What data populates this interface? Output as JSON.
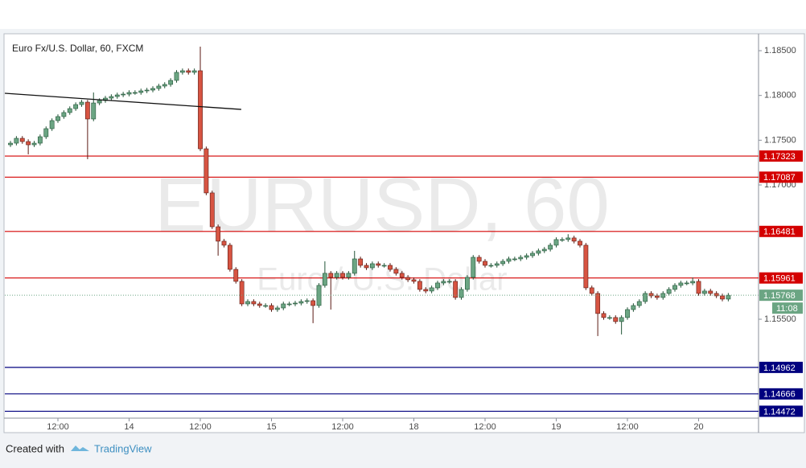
{
  "chart_data": {
    "type": "candlestick",
    "title": "Euro Fx/U.S. Dollar, 60, FXCM",
    "watermark": "EURUSD, 60",
    "watermark_subtitle": "Euro / U.S. Dollar",
    "up_color": "#6ba583",
    "down_color": "#d75442",
    "open": [
      1.17449,
      1.17467,
      1.17521,
      1.17485,
      1.17449,
      1.17467,
      1.17539,
      1.17629,
      1.17719,
      1.17764,
      1.17809,
      1.17853,
      1.17898,
      1.17925,
      1.17737,
      1.17916,
      1.17943,
      1.1797,
      1.17988,
      1.18006,
      1.18015,
      1.18033,
      1.18033,
      1.18051,
      1.1806,
      1.18078,
      1.18105,
      1.18123,
      1.18168,
      1.18258,
      1.18276,
      1.18258,
      1.18276,
      1.17404,
      1.16911,
      1.16533,
      1.16372,
      1.16327,
      1.16057,
      1.15923,
      1.15671,
      1.15698,
      1.15671,
      1.15653,
      1.15653,
      1.15608,
      1.15626,
      1.15671,
      1.15671,
      1.1568,
      1.15698,
      1.15707,
      1.15653,
      1.15878,
      1.16013,
      1.15968,
      1.16013,
      1.15968,
      1.16013,
      1.16174,
      1.16102,
      1.16075,
      1.1612,
      1.16102,
      1.16102,
      1.16057,
      1.16013,
      1.15968,
      1.15941,
      1.15923,
      1.15833,
      1.15815,
      1.15851,
      1.15905,
      1.15923,
      1.15923,
      1.15743,
      1.15833,
      1.15968,
      1.16192,
      1.16147,
      1.16102,
      1.16102,
      1.1612,
      1.16147,
      1.16174,
      1.16174,
      1.16192,
      1.1621,
      1.16237,
      1.16264,
      1.16282,
      1.16327,
      1.1639,
      1.1639,
      1.16408,
      1.16372,
      1.16327,
      1.15851,
      1.15788,
      1.15564,
      1.15519,
      1.15519,
      1.15474,
      1.15519,
      1.15608,
      1.15653,
      1.15698,
      1.15788,
      1.15761,
      1.15743,
      1.15788,
      1.15833,
      1.15878,
      1.15905,
      1.15905,
      1.15923,
      1.15788,
      1.15815,
      1.15788,
      1.15761,
      1.15725
    ],
    "high": [
      1.17492,
      1.17546,
      1.17546,
      1.1751,
      1.17492,
      1.17564,
      1.17654,
      1.17744,
      1.17789,
      1.17834,
      1.17878,
      1.17923,
      1.1795,
      1.1795,
      1.18033,
      1.17968,
      1.17995,
      1.18013,
      1.18031,
      1.1804,
      1.18058,
      1.18058,
      1.18076,
      1.18085,
      1.18103,
      1.1813,
      1.18148,
      1.18193,
      1.18283,
      1.18301,
      1.18301,
      1.18301,
      1.18545,
      1.17429,
      1.16936,
      1.16558,
      1.16397,
      1.16352,
      1.16082,
      1.15948,
      1.15723,
      1.15723,
      1.15696,
      1.15678,
      1.15678,
      1.15651,
      1.15696,
      1.15696,
      1.15705,
      1.15723,
      1.15732,
      1.15732,
      1.15903,
      1.16147,
      1.16038,
      1.16038,
      1.16038,
      1.16038,
      1.16264,
      1.16199,
      1.16127,
      1.16145,
      1.16145,
      1.16127,
      1.16127,
      1.16082,
      1.16038,
      1.15993,
      1.15966,
      1.15948,
      1.15858,
      1.15876,
      1.1593,
      1.15948,
      1.15948,
      1.15948,
      1.15858,
      1.15993,
      1.16217,
      1.16217,
      1.16172,
      1.16127,
      1.16145,
      1.16172,
      1.16199,
      1.16199,
      1.16217,
      1.16235,
      1.16262,
      1.16289,
      1.16307,
      1.16352,
      1.16415,
      1.16415,
      1.1645,
      1.16433,
      1.16397,
      1.16352,
      1.15876,
      1.15813,
      1.15589,
      1.15544,
      1.15544,
      1.15544,
      1.15633,
      1.15678,
      1.15723,
      1.15813,
      1.15813,
      1.15786,
      1.15813,
      1.15858,
      1.15903,
      1.1593,
      1.1593,
      1.15966,
      1.15948,
      1.1584,
      1.1584,
      1.15813,
      1.15786,
      1.15793
    ],
    "low": [
      1.17424,
      1.17442,
      1.1746,
      1.17342,
      1.17424,
      1.17442,
      1.17514,
      1.17604,
      1.17694,
      1.17739,
      1.17784,
      1.17828,
      1.17873,
      1.17288,
      1.17712,
      1.17891,
      1.17918,
      1.17945,
      1.17963,
      1.17981,
      1.1799,
      1.18008,
      1.18008,
      1.18026,
      1.18035,
      1.18053,
      1.1808,
      1.18098,
      1.18143,
      1.18233,
      1.18233,
      1.18233,
      1.17379,
      1.16886,
      1.16508,
      1.1621,
      1.16302,
      1.16032,
      1.15898,
      1.15646,
      1.15646,
      1.15646,
      1.15628,
      1.15628,
      1.15583,
      1.15583,
      1.15601,
      1.15646,
      1.15646,
      1.15655,
      1.15673,
      1.15456,
      1.15628,
      1.15853,
      1.15608,
      1.15943,
      1.15943,
      1.15943,
      1.15988,
      1.16077,
      1.1605,
      1.1605,
      1.16077,
      1.16077,
      1.16032,
      1.15988,
      1.15943,
      1.15916,
      1.15898,
      1.15808,
      1.1579,
      1.1579,
      1.15826,
      1.1588,
      1.15898,
      1.15718,
      1.15718,
      1.15808,
      1.15943,
      1.16122,
      1.16077,
      1.16077,
      1.16077,
      1.16095,
      1.16122,
      1.16149,
      1.16149,
      1.16167,
      1.16185,
      1.16212,
      1.16239,
      1.16257,
      1.16302,
      1.16365,
      1.16365,
      1.16347,
      1.16302,
      1.15826,
      1.15763,
      1.15312,
      1.15494,
      1.15494,
      1.15449,
      1.1533,
      1.15494,
      1.15583,
      1.15628,
      1.15673,
      1.15736,
      1.15718,
      1.15718,
      1.15763,
      1.15808,
      1.15853,
      1.1588,
      1.1588,
      1.15763,
      1.15763,
      1.15763,
      1.15736,
      1.157,
      1.157
    ],
    "close": [
      1.17467,
      1.17521,
      1.17485,
      1.17449,
      1.17467,
      1.17539,
      1.17629,
      1.17719,
      1.17764,
      1.17809,
      1.17853,
      1.17898,
      1.17925,
      1.17737,
      1.17916,
      1.17943,
      1.1797,
      1.17988,
      1.18006,
      1.18015,
      1.18033,
      1.18033,
      1.18051,
      1.1806,
      1.18078,
      1.18105,
      1.18123,
      1.18168,
      1.18258,
      1.18276,
      1.18258,
      1.18276,
      1.17404,
      1.16911,
      1.16533,
      1.16372,
      1.16327,
      1.16057,
      1.15923,
      1.15671,
      1.15698,
      1.15671,
      1.15653,
      1.15653,
      1.15608,
      1.15626,
      1.15671,
      1.15671,
      1.1568,
      1.15698,
      1.15707,
      1.15653,
      1.15878,
      1.16013,
      1.15968,
      1.16013,
      1.15968,
      1.16013,
      1.16174,
      1.16102,
      1.16075,
      1.1612,
      1.16102,
      1.16102,
      1.16057,
      1.16013,
      1.15968,
      1.15941,
      1.15923,
      1.15833,
      1.15815,
      1.15851,
      1.15905,
      1.15923,
      1.15923,
      1.15743,
      1.15833,
      1.15968,
      1.16192,
      1.16147,
      1.16102,
      1.16102,
      1.1612,
      1.16147,
      1.16174,
      1.16174,
      1.16192,
      1.1621,
      1.16237,
      1.16264,
      1.16282,
      1.16327,
      1.1639,
      1.1639,
      1.16408,
      1.16372,
      1.16327,
      1.15851,
      1.15788,
      1.15564,
      1.15519,
      1.15519,
      1.15474,
      1.15519,
      1.15608,
      1.15653,
      1.15698,
      1.15788,
      1.15761,
      1.15743,
      1.15788,
      1.15833,
      1.15878,
      1.15905,
      1.15905,
      1.15923,
      1.15788,
      1.15815,
      1.15788,
      1.15761,
      1.15725,
      1.15768
    ],
    "xlim": [
      -0.95,
      126.1
    ],
    "ylim": [
      1.14395,
      1.18671
    ],
    "xticks": [
      {
        "value": 8,
        "label": "12:00"
      },
      {
        "value": 20,
        "label": "14"
      },
      {
        "value": 32,
        "label": "12:00"
      },
      {
        "value": 44,
        "label": "15"
      },
      {
        "value": 56,
        "label": "12:00"
      },
      {
        "value": 68,
        "label": "18"
      },
      {
        "value": 80,
        "label": "12:00"
      },
      {
        "value": 92,
        "label": "19"
      },
      {
        "value": 104,
        "label": "12:00"
      },
      {
        "value": 116,
        "label": "20"
      }
    ],
    "yticks": [
      {
        "value": 1.185,
        "label": "1.18500"
      },
      {
        "value": 1.18,
        "label": "1.18000"
      },
      {
        "value": 1.175,
        "label": "1.17500"
      },
      {
        "value": 1.17,
        "label": "1.17000"
      },
      {
        "value": 1.155,
        "label": "1.15500"
      }
    ],
    "levels": [
      {
        "value": 1.17323,
        "label": "1.17323",
        "color": "#d40000"
      },
      {
        "value": 1.17087,
        "label": "1.17087",
        "color": "#d40000"
      },
      {
        "value": 1.16481,
        "label": "1.16481",
        "color": "#d40000"
      },
      {
        "value": 1.15961,
        "label": "1.15961",
        "color": "#d40000"
      },
      {
        "value": 1.14962,
        "label": "1.14962",
        "color": "#00007f"
      },
      {
        "value": 1.14666,
        "label": "1.14666",
        "color": "#00007f"
      },
      {
        "value": 1.14472,
        "label": "1.14472",
        "color": "#00007f"
      }
    ],
    "trend_line": {
      "x": [
        -0.95,
        38.9
      ],
      "y": [
        1.18024,
        1.17844
      ]
    },
    "last_price": {
      "value": 1.15768,
      "label": "1.15768"
    },
    "countdown": "11:08"
  },
  "footer": {
    "prefix": "Created with",
    "brand": "TradingView"
  }
}
